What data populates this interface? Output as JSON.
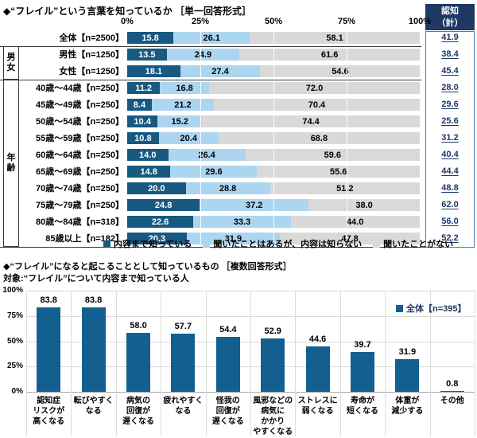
{
  "colors": {
    "know": "#175980",
    "heard": "#acd5f0",
    "never": "#d9d9d9",
    "bar": "#136090",
    "header_bg": "#1f3864",
    "recognition_text": "#1f3864",
    "recognition_border": "#4a7ebb",
    "legend2_text": "#1f3864"
  },
  "chart_data": [
    {
      "type": "stacked-bar-horizontal",
      "title": "◆“フレイル”という言葉を知っているか ［単一回答形式］",
      "axis_ticks": [
        "0%",
        "25%",
        "50%",
        "75%",
        "100%"
      ],
      "xlim": [
        0,
        100
      ],
      "recognition_header": "認知\n（計）",
      "legend": [
        "内容まで知っている",
        "聞いたことはあるが、内容は知らない",
        "聞いたことがない"
      ],
      "groups": [
        {
          "label": "男\n女",
          "start": 1,
          "end": 2
        },
        {
          "label": "年\n齢",
          "start": 3,
          "end": 12
        }
      ],
      "rows": [
        {
          "label": "全体【n=2500】",
          "values": [
            "15.8",
            "26.1",
            "58.1"
          ],
          "recognition": "41.9"
        },
        {
          "label": "男性【n=1250】",
          "values": [
            "13.5",
            "24.9",
            "61.6"
          ],
          "recognition": "38.4"
        },
        {
          "label": "女性【n=1250】",
          "values": [
            "18.1",
            "27.4",
            "54.6"
          ],
          "recognition": "45.4"
        },
        {
          "label": "40歳～44歳【n=250】",
          "values": [
            "11.2",
            "16.8",
            "72.0"
          ],
          "recognition": "28.0"
        },
        {
          "label": "45歳～49歳【n=250】",
          "values": [
            "8.4",
            "21.2",
            "70.4"
          ],
          "recognition": "29.6"
        },
        {
          "label": "50歳～54歳【n=250】",
          "values": [
            "10.4",
            "15.2",
            "74.4"
          ],
          "recognition": "25.6"
        },
        {
          "label": "55歳～59歳【n=250】",
          "values": [
            "10.8",
            "20.4",
            "68.8"
          ],
          "recognition": "31.2"
        },
        {
          "label": "60歳～64歳【n=250】",
          "values": [
            "14.0",
            "26.4",
            "59.6"
          ],
          "recognition": "40.4"
        },
        {
          "label": "65歳～69歳【n=250】",
          "values": [
            "14.8",
            "29.6",
            "55.6"
          ],
          "recognition": "44.4"
        },
        {
          "label": "70歳～74歳【n=250】",
          "values": [
            "20.0",
            "28.8",
            "51.2"
          ],
          "recognition": "48.8"
        },
        {
          "label": "75歳～79歳【n=250】",
          "values": [
            "24.8",
            "37.2",
            "38.0"
          ],
          "recognition": "62.0"
        },
        {
          "label": "80歳～84歳【n=318】",
          "values": [
            "22.6",
            "33.3",
            "44.0"
          ],
          "recognition": "56.0"
        },
        {
          "label": "85歳以上【n=182】",
          "values": [
            "20.3",
            "31.9",
            "47.8"
          ],
          "recognition": "52.2"
        }
      ]
    },
    {
      "type": "bar",
      "title": "◆“フレイル”になると起こることとして知っているもの ［複数回答形式］",
      "subtitle": "対象:“フレイル”について内容まで知っている人",
      "legend": "全体【n=395】",
      "ylim": [
        0,
        100
      ],
      "yticks": [
        "100%",
        "75%",
        "50%",
        "25%",
        "0%"
      ],
      "categories": [
        "認知症\nリスクが\n高くなる",
        "転びやすく\nなる",
        "病気の\n回復が\n遅くなる",
        "疲れやすく\nなる",
        "怪我の\n回復が\n遅くなる",
        "風邪などの\n病気に\nかかり\nやすくなる",
        "ストレスに\n弱くなる",
        "寿命が\n短くなる",
        "体重が\n減少する",
        "その他"
      ],
      "values": [
        "83.8",
        "83.8",
        "58.0",
        "57.7",
        "54.4",
        "52.9",
        "44.6",
        "39.7",
        "31.9",
        "0.8"
      ]
    }
  ]
}
